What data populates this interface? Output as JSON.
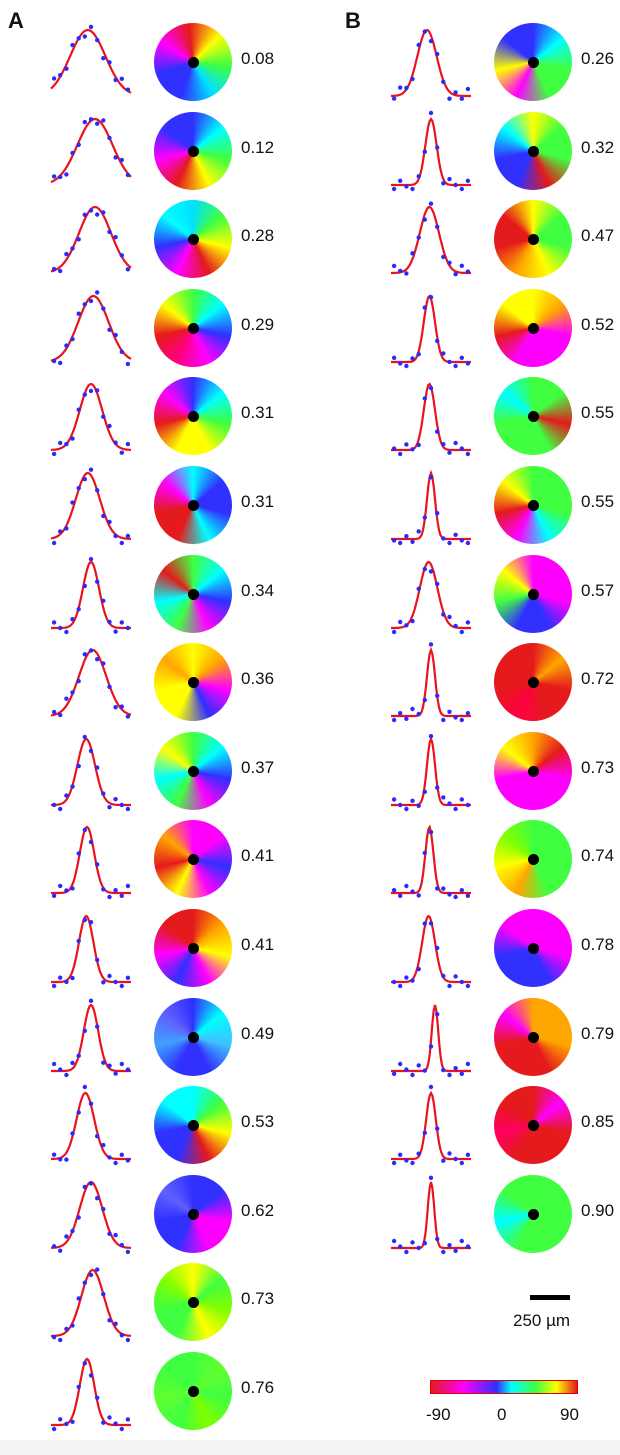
{
  "panels": [
    {
      "label": "A",
      "rows": [
        {
          "value": "0.08",
          "sigma": 0.22,
          "peak": 0.46
        },
        {
          "value": "0.12",
          "sigma": 0.22,
          "peak": 0.55
        },
        {
          "value": "0.28",
          "sigma": 0.2,
          "peak": 0.55
        },
        {
          "value": "0.29",
          "sigma": 0.19,
          "peak": 0.53
        },
        {
          "value": "0.31",
          "sigma": 0.14,
          "peak": 0.5
        },
        {
          "value": "0.31",
          "sigma": 0.15,
          "peak": 0.46
        },
        {
          "value": "0.34",
          "sigma": 0.1,
          "peak": 0.5
        },
        {
          "value": "0.36",
          "sigma": 0.17,
          "peak": 0.52
        },
        {
          "value": "0.37",
          "sigma": 0.11,
          "peak": 0.44
        },
        {
          "value": "0.41",
          "sigma": 0.09,
          "peak": 0.45
        },
        {
          "value": "0.41",
          "sigma": 0.09,
          "peak": 0.44
        },
        {
          "value": "0.49",
          "sigma": 0.09,
          "peak": 0.5
        },
        {
          "value": "0.53",
          "sigma": 0.11,
          "peak": 0.43
        },
        {
          "value": "0.62",
          "sigma": 0.14,
          "peak": 0.5
        },
        {
          "value": "0.73",
          "sigma": 0.14,
          "peak": 0.52
        },
        {
          "value": "0.76",
          "sigma": 0.09,
          "peak": 0.45
        }
      ]
    },
    {
      "label": "B",
      "rows": [
        {
          "value": "0.26",
          "sigma": 0.12,
          "peak": 0.45
        },
        {
          "value": "0.32",
          "sigma": 0.07,
          "peak": 0.5
        },
        {
          "value": "0.47",
          "sigma": 0.12,
          "peak": 0.48
        },
        {
          "value": "0.52",
          "sigma": 0.07,
          "peak": 0.48
        },
        {
          "value": "0.55",
          "sigma": 0.07,
          "peak": 0.48
        },
        {
          "value": "0.55",
          "sigma": 0.05,
          "peak": 0.5
        },
        {
          "value": "0.57",
          "sigma": 0.11,
          "peak": 0.47
        },
        {
          "value": "0.72",
          "sigma": 0.05,
          "peak": 0.5
        },
        {
          "value": "0.73",
          "sigma": 0.05,
          "peak": 0.5
        },
        {
          "value": "0.74",
          "sigma": 0.05,
          "peak": 0.48
        },
        {
          "value": "0.78",
          "sigma": 0.08,
          "peak": 0.47
        },
        {
          "value": "0.79",
          "sigma": 0.04,
          "peak": 0.55
        },
        {
          "value": "0.85",
          "sigma": 0.06,
          "peak": 0.5
        },
        {
          "value": "0.90",
          "sigma": 0.04,
          "peak": 0.5
        }
      ]
    }
  ],
  "maps": {
    "A": [
      {
        "from": 45,
        "c": [
          "#ffff00",
          "#40ff40",
          "#00e0ff",
          "#3030ff",
          "#3030ff",
          "#ff00ff",
          "#e41a1c",
          "#ffff00"
        ]
      },
      {
        "from": 0,
        "c": [
          "#3030ff",
          "#00ffff",
          "#40ff40",
          "#ffff00",
          "#e41a1c",
          "#ff00ff",
          "#3030ff",
          "#3030ff"
        ]
      },
      {
        "from": 0,
        "c": [
          "#00e0ff",
          "#40ff40",
          "#ffff00",
          "#e41a1c",
          "#ff00ff",
          "#3030ff",
          "#00ffff",
          "#00e0ff"
        ]
      },
      {
        "from": 0,
        "c": [
          "#40ff40",
          "#00ffff",
          "#3030ff",
          "#ff00ff",
          "#ff0080",
          "#e41a1c",
          "#ffff00",
          "#40ff40"
        ]
      },
      {
        "from": 0,
        "c": [
          "#3030ff",
          "#00ffff",
          "#40ff40",
          "#ffff00",
          "#ffff00",
          "#e41a1c",
          "#ff00ff",
          "#3030ff"
        ]
      },
      {
        "from": 0,
        "c": [
          "#00ffff",
          "#3030ff",
          "#3030ff",
          "#00ffff",
          "#e41a1c",
          "#e41a1c",
          "#ff00ff",
          "#00ffff"
        ]
      },
      {
        "from": 0,
        "c": [
          "#40ff40",
          "#00ffff",
          "#3030ff",
          "#ff00ff",
          "#40ff40",
          "#00ffff",
          "#e41a1c",
          "#40ff40"
        ]
      },
      {
        "from": 0,
        "c": [
          "#ffff00",
          "#ffa500",
          "#ff00ff",
          "#3030ff",
          "#ffff00",
          "#ffff00",
          "#ffa500",
          "#ffff00"
        ]
      },
      {
        "from": 0,
        "c": [
          "#40ff40",
          "#00ffff",
          "#3030ff",
          "#ff00ff",
          "#40ff40",
          "#00ffff",
          "#ffff00",
          "#40ff40"
        ]
      },
      {
        "from": 0,
        "c": [
          "#ff00ff",
          "#ff00ff",
          "#3030ff",
          "#ff00ff",
          "#ffff00",
          "#e41a1c",
          "#ffa500",
          "#ff00ff"
        ]
      },
      {
        "from": 0,
        "c": [
          "#e41a1c",
          "#ffa500",
          "#ffff00",
          "#ff00ff",
          "#3030ff",
          "#ff00ff",
          "#e41a1c",
          "#e41a1c"
        ]
      },
      {
        "from": 0,
        "c": [
          "#3030ff",
          "#00ffff",
          "#40c0ff",
          "#3030ff",
          "#3030ff",
          "#40a0ff",
          "#6060ff",
          "#3030ff"
        ]
      },
      {
        "from": 0,
        "c": [
          "#00ffff",
          "#40ff40",
          "#ffff00",
          "#e41a1c",
          "#3030ff",
          "#3030ff",
          "#00ffff",
          "#00ffff"
        ]
      },
      {
        "from": 0,
        "c": [
          "#3030ff",
          "#3030ff",
          "#ff00ff",
          "#ff00ff",
          "#3030ff",
          "#3030ff",
          "#6060ff",
          "#3030ff"
        ]
      },
      {
        "from": 0,
        "c": [
          "#ffff00",
          "#40ff40",
          "#80ff00",
          "#ffff00",
          "#40ff40",
          "#40ff40",
          "#80ff00",
          "#ffff00"
        ]
      },
      {
        "from": 0,
        "c": [
          "#40ff40",
          "#60ff30",
          "#40ff40",
          "#80ff00",
          "#40ff40",
          "#60ff30",
          "#40ff40",
          "#40ff40"
        ]
      }
    ],
    "B": [
      {
        "from": 0,
        "c": [
          "#3030ff",
          "#00ffff",
          "#40ff40",
          "#40ff40",
          "#ff00ff",
          "#ffff00",
          "#3030ff",
          "#3030ff"
        ]
      },
      {
        "from": 0,
        "c": [
          "#ffff00",
          "#40ff40",
          "#40ff40",
          "#e41a1c",
          "#3030ff",
          "#3030ff",
          "#00ffff",
          "#ffff00"
        ]
      },
      {
        "from": 0,
        "c": [
          "#ffff00",
          "#40ff40",
          "#40ff40",
          "#ffff00",
          "#ffa500",
          "#e41a1c",
          "#e41a1c",
          "#ffff00"
        ]
      },
      {
        "from": 0,
        "c": [
          "#ffff00",
          "#ffa500",
          "#ff00ff",
          "#ff00ff",
          "#ff00ff",
          "#e41a1c",
          "#ffff00",
          "#ffff00"
        ]
      },
      {
        "from": 0,
        "c": [
          "#40ff40",
          "#40ff40",
          "#e41a1c",
          "#40ff40",
          "#40ff40",
          "#40ff40",
          "#00ffff",
          "#40ff40"
        ]
      },
      {
        "from": 0,
        "c": [
          "#40ff40",
          "#40ff40",
          "#40ff40",
          "#00ffff",
          "#ff00ff",
          "#e41a1c",
          "#ffff00",
          "#40ff40"
        ]
      },
      {
        "from": 0,
        "c": [
          "#ff00ff",
          "#ff00ff",
          "#ff00ff",
          "#3030ff",
          "#3030ff",
          "#40ff40",
          "#ffff00",
          "#ff00ff"
        ]
      },
      {
        "from": 0,
        "c": [
          "#e41a1c",
          "#ffa500",
          "#e41a1c",
          "#e41a1c",
          "#ff0040",
          "#e41a1c",
          "#e41a1c",
          "#e41a1c"
        ]
      },
      {
        "from": 0,
        "c": [
          "#ffa500",
          "#e41a1c",
          "#ff00ff",
          "#ff00ff",
          "#ff00ff",
          "#ff00ff",
          "#ffff00",
          "#ffa500"
        ]
      },
      {
        "from": 0,
        "c": [
          "#40ff40",
          "#40ff40",
          "#40ff40",
          "#40ff40",
          "#ffa500",
          "#ffff00",
          "#80ff00",
          "#40ff40"
        ]
      },
      {
        "from": 0,
        "c": [
          "#ff00ff",
          "#ff00ff",
          "#ff00ff",
          "#3030ff",
          "#3030ff",
          "#3030ff",
          "#ff00ff",
          "#ff00ff"
        ]
      },
      {
        "from": 0,
        "c": [
          "#ffa500",
          "#ffa500",
          "#ffa500",
          "#e41a1c",
          "#e41a1c",
          "#e41a1c",
          "#ff00ff",
          "#ffa500"
        ]
      },
      {
        "from": 0,
        "c": [
          "#e41a1c",
          "#ff00ff",
          "#e41a1c",
          "#e41a1c",
          "#e41a1c",
          "#ff0060",
          "#e41a1c",
          "#e41a1c"
        ]
      },
      {
        "from": 0,
        "c": [
          "#40ff40",
          "#40ff40",
          "#40ff40",
          "#40ff40",
          "#40ff40",
          "#00ffff",
          "#40ff40",
          "#40ff40"
        ]
      }
    ]
  },
  "scale_bar": {
    "label": "250 µm"
  },
  "colorbar": {
    "ticks": [
      "-90",
      "0",
      "90"
    ]
  },
  "colors": {
    "points": "#2a2aff",
    "fit": "#e8131d"
  }
}
